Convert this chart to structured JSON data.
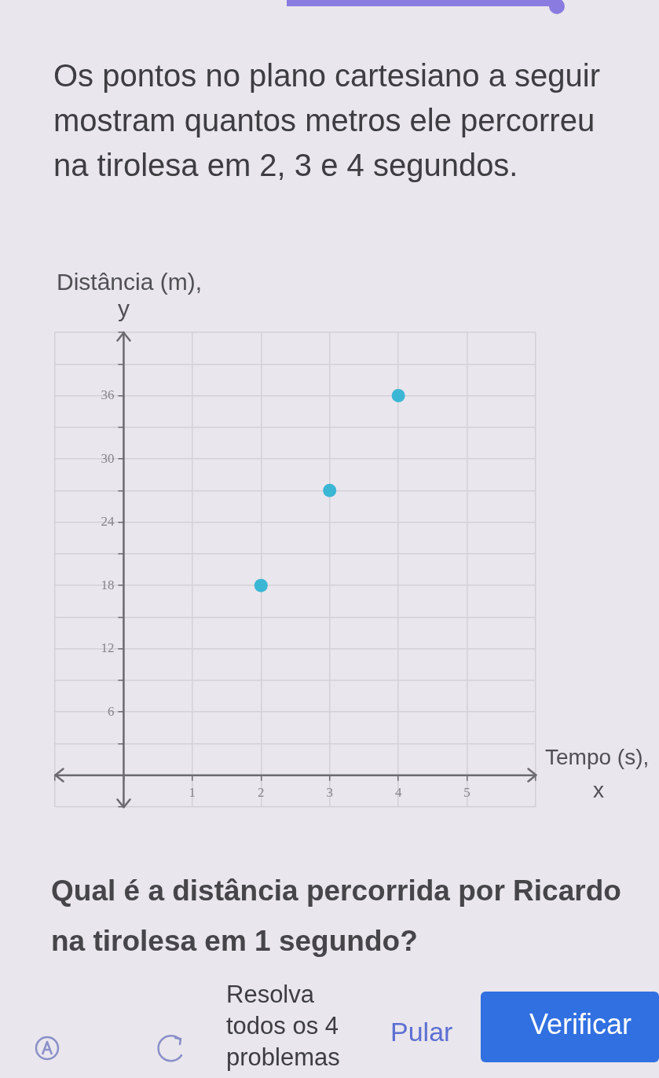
{
  "chart_data": {
    "type": "scatter",
    "title": "Os pontos no plano cartesiano a seguir mostram quantos metros ele percorreu na tirolesa em 2, 3 e 4 segundos.",
    "xlabel": "Tempo (s),\nx",
    "ylabel": "Distância (m),\ny",
    "x": [
      2,
      3,
      4
    ],
    "values": [
      18,
      27,
      36
    ],
    "color": "#3bb6d4",
    "marker": "circle",
    "xlim": [
      -1,
      6
    ],
    "ylim": [
      -3,
      42
    ],
    "xticks": [
      {
        "value": -1,
        "label": null
      },
      {
        "value": 0,
        "label": null
      },
      1,
      2,
      3,
      4,
      5,
      {
        "value": 6,
        "label": null
      }
    ],
    "yticks": [
      {
        "value": -3,
        "label": null
      },
      {
        "value": 0,
        "label": null
      },
      {
        "value": 3,
        "label": null
      },
      6,
      {
        "value": 9,
        "label": null
      },
      12,
      {
        "value": 15,
        "label": null
      },
      18,
      {
        "value": 21,
        "label": null
      },
      24,
      {
        "value": 27,
        "label": null
      },
      30,
      {
        "value": 33,
        "label": null
      },
      36,
      {
        "value": 39,
        "label": null
      },
      {
        "value": 42,
        "label": null
      }
    ],
    "grid": true,
    "annotations": [
      "Qual é a distância percorrida por Ricardo na tirolesa em 1 segundo?",
      "Resolva todos os 4 problemas",
      "Pular",
      "Verificar"
    ]
  }
}
